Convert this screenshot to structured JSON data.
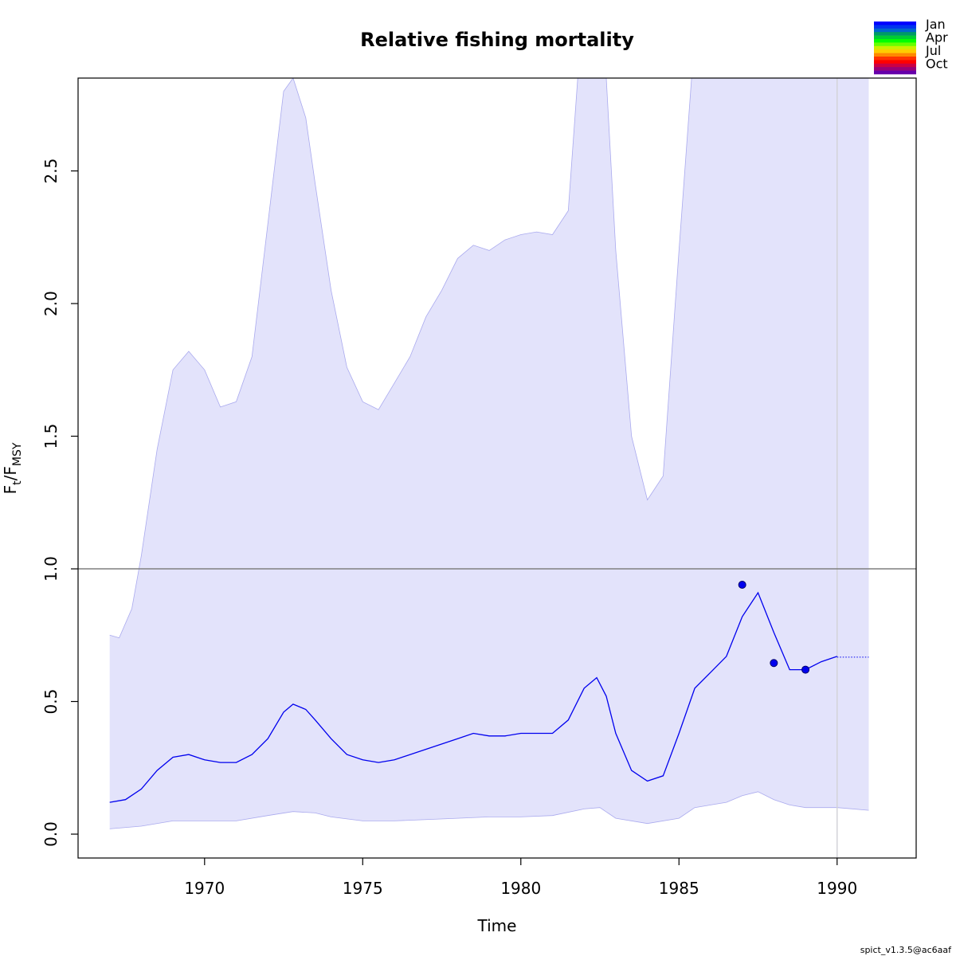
{
  "chart_data": {
    "type": "line",
    "title": "Relative fishing mortality",
    "xlabel": "Time",
    "ylabel": {
      "main": "F",
      "sub1": "t",
      "sep": "/F",
      "sub2": "MSY"
    },
    "xlim": [
      1966.0,
      1992.5
    ],
    "ylim": [
      -0.09,
      2.85
    ],
    "x_ticks": [
      1970,
      1975,
      1980,
      1985,
      1990
    ],
    "y_ticks": [
      0.0,
      0.5,
      1.0,
      1.5,
      2.0,
      2.5
    ],
    "y_tick_labels": [
      "0.0",
      "0.5",
      "1.0",
      "1.5",
      "2.0",
      "2.5"
    ],
    "reference_line": {
      "y": 1.0,
      "color": "#7f7f7f"
    },
    "vertical_line": {
      "x": 1990.0,
      "color": "#d3d3d8"
    },
    "colors": {
      "line": "#0000ee",
      "band_fill": "#e3e3fb",
      "band_edge": "#aaaaee",
      "points": "#0000ee"
    },
    "series": [
      {
        "name": "estimate",
        "points": [
          [
            1967.0,
            0.12
          ],
          [
            1967.5,
            0.13
          ],
          [
            1968.0,
            0.17
          ],
          [
            1968.5,
            0.24
          ],
          [
            1969.0,
            0.29
          ],
          [
            1969.5,
            0.3
          ],
          [
            1970.0,
            0.28
          ],
          [
            1970.5,
            0.27
          ],
          [
            1971.0,
            0.27
          ],
          [
            1971.5,
            0.3
          ],
          [
            1972.0,
            0.36
          ],
          [
            1972.5,
            0.46
          ],
          [
            1972.8,
            0.49
          ],
          [
            1973.2,
            0.47
          ],
          [
            1973.5,
            0.43
          ],
          [
            1974.0,
            0.36
          ],
          [
            1974.5,
            0.3
          ],
          [
            1975.0,
            0.28
          ],
          [
            1975.5,
            0.27
          ],
          [
            1976.0,
            0.28
          ],
          [
            1977.0,
            0.32
          ],
          [
            1978.0,
            0.36
          ],
          [
            1978.5,
            0.38
          ],
          [
            1979.0,
            0.37
          ],
          [
            1979.5,
            0.37
          ],
          [
            1980.0,
            0.38
          ],
          [
            1980.5,
            0.38
          ],
          [
            1981.0,
            0.38
          ],
          [
            1981.5,
            0.43
          ],
          [
            1982.0,
            0.55
          ],
          [
            1982.4,
            0.59
          ],
          [
            1982.7,
            0.52
          ],
          [
            1983.0,
            0.38
          ],
          [
            1983.5,
            0.24
          ],
          [
            1984.0,
            0.2
          ],
          [
            1984.5,
            0.22
          ],
          [
            1985.0,
            0.38
          ],
          [
            1985.5,
            0.55
          ],
          [
            1986.0,
            0.61
          ],
          [
            1986.5,
            0.67
          ],
          [
            1987.0,
            0.82
          ],
          [
            1987.5,
            0.91
          ],
          [
            1988.0,
            0.76
          ],
          [
            1988.5,
            0.62
          ],
          [
            1989.0,
            0.62
          ],
          [
            1989.5,
            0.65
          ],
          [
            1990.0,
            0.67
          ]
        ]
      },
      {
        "name": "forecast",
        "style": "dotted",
        "points": [
          [
            1990.0,
            0.667
          ],
          [
            1991.0,
            0.667
          ]
        ]
      }
    ],
    "confidence_band": {
      "upper": [
        [
          1967.0,
          0.75
        ],
        [
          1967.3,
          0.74
        ],
        [
          1967.7,
          0.85
        ],
        [
          1968.0,
          1.05
        ],
        [
          1968.5,
          1.45
        ],
        [
          1969.0,
          1.75
        ],
        [
          1969.5,
          1.82
        ],
        [
          1970.0,
          1.75
        ],
        [
          1970.5,
          1.61
        ],
        [
          1971.0,
          1.63
        ],
        [
          1971.5,
          1.8
        ],
        [
          1972.0,
          2.3
        ],
        [
          1972.5,
          2.8
        ],
        [
          1972.8,
          2.85
        ],
        [
          1973.2,
          2.7
        ],
        [
          1973.5,
          2.45
        ],
        [
          1974.0,
          2.05
        ],
        [
          1974.5,
          1.76
        ],
        [
          1975.0,
          1.63
        ],
        [
          1975.5,
          1.6
        ],
        [
          1976.0,
          1.7
        ],
        [
          1976.5,
          1.8
        ],
        [
          1977.0,
          1.95
        ],
        [
          1977.5,
          2.05
        ],
        [
          1978.0,
          2.17
        ],
        [
          1978.5,
          2.22
        ],
        [
          1979.0,
          2.2
        ],
        [
          1979.5,
          2.24
        ],
        [
          1980.0,
          2.26
        ],
        [
          1980.5,
          2.27
        ],
        [
          1981.0,
          2.26
        ],
        [
          1981.5,
          2.35
        ],
        [
          1981.8,
          2.85
        ],
        [
          1982.7,
          2.85
        ],
        [
          1983.0,
          2.2
        ],
        [
          1983.5,
          1.5
        ],
        [
          1984.0,
          1.26
        ],
        [
          1984.5,
          1.35
        ],
        [
          1985.0,
          2.2
        ],
        [
          1985.4,
          2.85
        ],
        [
          1991.0,
          2.85
        ]
      ],
      "lower": [
        [
          1967.0,
          0.02
        ],
        [
          1968.0,
          0.03
        ],
        [
          1969.0,
          0.05
        ],
        [
          1970.0,
          0.05
        ],
        [
          1971.0,
          0.05
        ],
        [
          1972.0,
          0.07
        ],
        [
          1972.8,
          0.085
        ],
        [
          1973.5,
          0.08
        ],
        [
          1974.0,
          0.065
        ],
        [
          1975.0,
          0.05
        ],
        [
          1976.0,
          0.05
        ],
        [
          1978.0,
          0.06
        ],
        [
          1979.0,
          0.065
        ],
        [
          1980.0,
          0.065
        ],
        [
          1981.0,
          0.07
        ],
        [
          1982.0,
          0.095
        ],
        [
          1982.5,
          0.1
        ],
        [
          1983.0,
          0.06
        ],
        [
          1984.0,
          0.04
        ],
        [
          1985.0,
          0.06
        ],
        [
          1985.5,
          0.1
        ],
        [
          1986.0,
          0.11
        ],
        [
          1986.5,
          0.12
        ],
        [
          1987.0,
          0.145
        ],
        [
          1987.5,
          0.16
        ],
        [
          1988.0,
          0.13
        ],
        [
          1988.5,
          0.11
        ],
        [
          1989.0,
          0.1
        ],
        [
          1990.0,
          0.1
        ],
        [
          1991.0,
          0.09
        ]
      ]
    },
    "observations": [
      {
        "x": 1987.0,
        "y": 0.94
      },
      {
        "x": 1988.0,
        "y": 0.645
      },
      {
        "x": 1989.0,
        "y": 0.62
      }
    ],
    "legend": {
      "placement": "top-right",
      "entries": [
        "Jan",
        "Apr",
        "Jul",
        "Oct"
      ],
      "color_bands": [
        "#0000ff",
        "#0033ee",
        "#0066cc",
        "#009966",
        "#00cc33",
        "#00ff00",
        "#66ff00",
        "#ccee00",
        "#ffcc00",
        "#ff8800",
        "#ff3300",
        "#ff0000",
        "#cc0044",
        "#990077",
        "#6600aa"
      ]
    },
    "grid": false
  },
  "footer": {
    "text": "spict_v1.3.5@ac6aaf"
  }
}
